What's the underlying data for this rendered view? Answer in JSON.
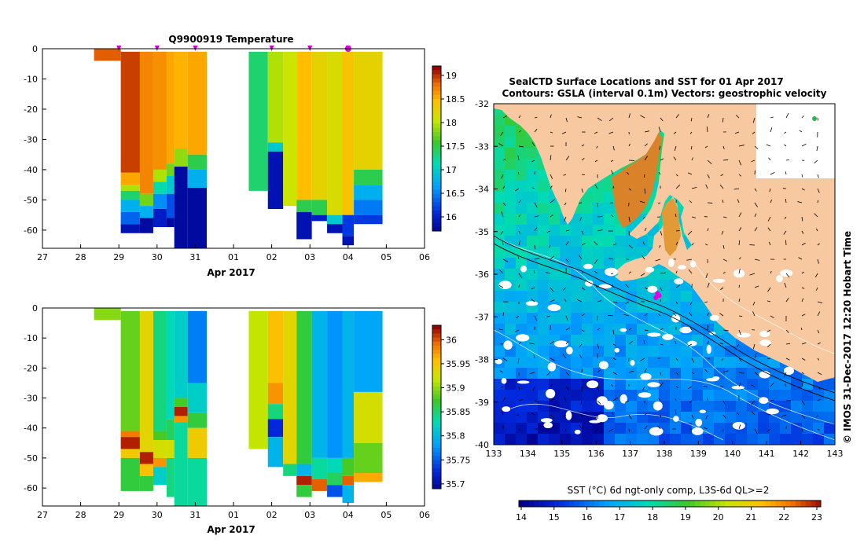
{
  "chart_data": [
    {
      "type": "heatmap",
      "title": "Q9900919  Temperature",
      "xlabel": "Apr 2017",
      "ylabel": "",
      "x_ticks": [
        "27",
        "28",
        "29",
        "30",
        "31",
        "01",
        "02",
        "03",
        "04",
        "05",
        "06"
      ],
      "xlim": [
        27,
        37
      ],
      "ylim": [
        -66,
        0
      ],
      "y_ticks": [
        "0",
        "-10",
        "-20",
        "-30",
        "-40",
        "-50",
        "-60"
      ],
      "colorbar": {
        "min": 15.7,
        "max": 19.2,
        "ticks": [
          "16",
          "16.5",
          "17",
          "17.5",
          "18",
          "18.5",
          "19"
        ]
      },
      "profile_markers": [
        29.0,
        30.0,
        31.0,
        33.0,
        34.0,
        35.0
      ],
      "profiles": [
        {
          "x0": 28.35,
          "x1": 29.05,
          "segments": [
            [
              0,
              -4,
              18.9
            ]
          ]
        },
        {
          "x0": 29.05,
          "x1": 29.55,
          "segments": [
            [
              -1,
              -41,
              19.0
            ],
            [
              -41,
              -45,
              18.6
            ],
            [
              -45,
              -47,
              18.0
            ],
            [
              -47,
              -50,
              17.4
            ],
            [
              -50,
              -54,
              16.8
            ],
            [
              -54,
              -58,
              16.4
            ],
            [
              -58,
              -61,
              15.9
            ]
          ]
        },
        {
          "x0": 29.55,
          "x1": 29.9,
          "segments": [
            [
              -1,
              -48,
              18.75
            ],
            [
              -48,
              -52,
              17.8
            ],
            [
              -52,
              -56,
              16.8
            ],
            [
              -56,
              -61,
              15.8
            ]
          ]
        },
        {
          "x0": 29.9,
          "x1": 30.25,
          "segments": [
            [
              -1,
              -40,
              18.7
            ],
            [
              -40,
              -44,
              18.0
            ],
            [
              -44,
              -48,
              17.2
            ],
            [
              -48,
              -53,
              16.6
            ],
            [
              -53,
              -59,
              16.0
            ]
          ]
        },
        {
          "x0": 30.25,
          "x1": 30.45,
          "segments": [
            [
              -1,
              -38,
              18.6
            ],
            [
              -38,
              -42,
              17.8
            ],
            [
              -42,
              -48,
              17.0
            ],
            [
              -48,
              -56,
              16.3
            ],
            [
              -56,
              -59,
              15.8
            ]
          ]
        },
        {
          "x0": 30.45,
          "x1": 30.8,
          "segments": [
            [
              -1,
              -33,
              18.55
            ],
            [
              -33,
              -39,
              17.9
            ],
            [
              -39,
              -66,
              15.8
            ]
          ]
        },
        {
          "x0": 30.8,
          "x1": 31.3,
          "segments": [
            [
              -1,
              -35,
              18.6
            ],
            [
              -35,
              -40,
              17.5
            ],
            [
              -40,
              -46,
              16.8
            ],
            [
              -46,
              -66,
              15.8
            ]
          ]
        },
        {
          "x0": 32.4,
          "x1": 32.9,
          "segments": [
            [
              -1,
              -47,
              17.4
            ]
          ]
        },
        {
          "x0": 32.9,
          "x1": 33.3,
          "segments": [
            [
              -1,
              -31,
              18.0
            ],
            [
              -31,
              -34,
              17.0
            ],
            [
              -34,
              -53,
              15.9
            ]
          ]
        },
        {
          "x0": 33.3,
          "x1": 33.65,
          "segments": [
            [
              -1,
              -52,
              18.1
            ]
          ]
        },
        {
          "x0": 33.65,
          "x1": 34.05,
          "segments": [
            [
              -1,
              -50,
              18.5
            ],
            [
              -50,
              -54,
              17.5
            ],
            [
              -54,
              -63,
              15.9
            ]
          ]
        },
        {
          "x0": 34.05,
          "x1": 34.45,
          "segments": [
            [
              -1,
              -50,
              18.3
            ],
            [
              -50,
              -55,
              17.5
            ],
            [
              -55,
              -57,
              16.0
            ]
          ]
        },
        {
          "x0": 34.45,
          "x1": 34.85,
          "segments": [
            [
              -1,
              -55,
              18.2
            ],
            [
              -55,
              -58,
              17.0
            ],
            [
              -58,
              -61,
              15.9
            ]
          ]
        },
        {
          "x0": 34.85,
          "x1": 35.15,
          "segments": [
            [
              -1,
              -55,
              18.45
            ],
            [
              -55,
              -62,
              16.2
            ],
            [
              -62,
              -65,
              15.9
            ]
          ]
        },
        {
          "x0": 35.15,
          "x1": 35.9,
          "segments": [
            [
              -1,
              -40,
              18.3
            ],
            [
              -40,
              -45,
              17.5
            ],
            [
              -45,
              -50,
              16.8
            ],
            [
              -50,
              -55,
              16.5
            ],
            [
              -55,
              -58,
              16.2
            ]
          ]
        }
      ]
    },
    {
      "type": "heatmap",
      "title": "",
      "xlabel": "Apr 2017",
      "ylabel": "",
      "x_ticks": [
        "27",
        "28",
        "29",
        "30",
        "31",
        "01",
        "02",
        "03",
        "04",
        "05",
        "06"
      ],
      "xlim": [
        27,
        37
      ],
      "ylim": [
        -66,
        0
      ],
      "y_ticks": [
        "0",
        "-10",
        "-20",
        "-30",
        "-40",
        "-50",
        "-60"
      ],
      "colorbar": {
        "min": 35.69,
        "max": 36.03,
        "ticks": [
          "35.7",
          "35.75",
          "35.8",
          "35.85",
          "35.9",
          "35.95",
          "36"
        ]
      },
      "profiles": [
        {
          "x0": 28.35,
          "x1": 29.05,
          "segments": [
            [
              0,
              -4,
              35.9
            ]
          ]
        },
        {
          "x0": 29.05,
          "x1": 29.55,
          "segments": [
            [
              -1,
              -41,
              35.89
            ],
            [
              -41,
              -43,
              35.99
            ],
            [
              -43,
              -47,
              36.02
            ],
            [
              -47,
              -50,
              35.95
            ],
            [
              -50,
              -61,
              35.87
            ]
          ]
        },
        {
          "x0": 29.55,
          "x1": 29.9,
          "segments": [
            [
              -1,
              -48,
              35.94
            ],
            [
              -48,
              -52,
              36.02
            ],
            [
              -52,
              -56,
              35.96
            ],
            [
              -56,
              -61,
              35.87
            ]
          ]
        },
        {
          "x0": 29.9,
          "x1": 30.25,
          "segments": [
            [
              -1,
              -41,
              35.85
            ],
            [
              -41,
              -44,
              35.88
            ],
            [
              -44,
              -50,
              35.93
            ],
            [
              -50,
              -53,
              35.98
            ],
            [
              -53,
              -59,
              35.82
            ]
          ]
        },
        {
          "x0": 30.25,
          "x1": 30.45,
          "segments": [
            [
              -1,
              -37,
              35.83
            ],
            [
              -37,
              -44,
              35.86
            ],
            [
              -44,
              -50,
              35.93
            ],
            [
              -50,
              -63,
              35.85
            ]
          ]
        },
        {
          "x0": 30.45,
          "x1": 30.8,
          "segments": [
            [
              -1,
              -30,
              35.82
            ],
            [
              -30,
              -33,
              35.88
            ],
            [
              -33,
              -36,
              36.02
            ],
            [
              -36,
              -38,
              35.98
            ],
            [
              -38,
              -66,
              35.84
            ]
          ]
        },
        {
          "x0": 30.8,
          "x1": 31.3,
          "segments": [
            [
              -1,
              -25,
              35.77
            ],
            [
              -25,
              -35,
              35.82
            ],
            [
              -35,
              -40,
              35.87
            ],
            [
              -40,
              -50,
              35.95
            ],
            [
              -50,
              -66,
              35.84
            ]
          ]
        },
        {
          "x0": 32.4,
          "x1": 32.9,
          "segments": [
            [
              -1,
              -47,
              35.92
            ]
          ]
        },
        {
          "x0": 32.9,
          "x1": 33.3,
          "segments": [
            [
              -1,
              -25,
              35.96
            ],
            [
              -25,
              -32,
              35.98
            ],
            [
              -32,
              -37,
              35.85
            ],
            [
              -37,
              -43,
              35.73
            ],
            [
              -43,
              -53,
              35.8
            ]
          ]
        },
        {
          "x0": 33.3,
          "x1": 33.65,
          "segments": [
            [
              -1,
              -52,
              35.94
            ],
            [
              -52,
              -56,
              35.85
            ]
          ]
        },
        {
          "x0": 33.65,
          "x1": 34.05,
          "segments": [
            [
              -1,
              -52,
              35.87
            ],
            [
              -52,
              -56,
              35.8
            ],
            [
              -56,
              -59,
              36.02
            ],
            [
              -59,
              -63,
              35.87
            ]
          ]
        },
        {
          "x0": 34.05,
          "x1": 34.45,
          "segments": [
            [
              -1,
              -50,
              35.8
            ],
            [
              -50,
              -57,
              35.84
            ],
            [
              -57,
              -61,
              36.0
            ]
          ]
        },
        {
          "x0": 34.45,
          "x1": 34.85,
          "segments": [
            [
              -1,
              -50,
              35.78
            ],
            [
              -50,
              -55,
              35.83
            ],
            [
              -55,
              -59,
              35.86
            ],
            [
              -59,
              -63,
              35.75
            ]
          ]
        },
        {
          "x0": 34.85,
          "x1": 35.15,
          "segments": [
            [
              -1,
              -50,
              35.8
            ],
            [
              -50,
              -56,
              35.88
            ],
            [
              -56,
              -59,
              36.0
            ],
            [
              -59,
              -65,
              35.8
            ]
          ]
        },
        {
          "x0": 35.15,
          "x1": 35.9,
          "segments": [
            [
              -1,
              -28,
              35.79
            ],
            [
              -28,
              -45,
              35.93
            ],
            [
              -45,
              -55,
              35.89
            ],
            [
              -55,
              -58,
              35.97
            ]
          ]
        }
      ]
    },
    {
      "type": "heatmap",
      "title": "SealCTD Surface Locations and SST for 01 Apr 2017",
      "subtitle": "Contours: GSLA (interval 0.1m) Vectors: geostrophic velocity",
      "x_ticks": [
        "133",
        "134",
        "135",
        "136",
        "137",
        "138",
        "139",
        "140",
        "141",
        "142",
        "143"
      ],
      "y_ticks": [
        "-32",
        "-33",
        "-34",
        "-35",
        "-36",
        "-37",
        "-38",
        "-39",
        "-40"
      ],
      "xlim": [
        133,
        143
      ],
      "ylim": [
        -40,
        -32
      ],
      "colorbar_label": "SST (°C) 6d ngt-only comp, L3S-6d QL>=2",
      "colorbar": {
        "min": 14,
        "max": 23,
        "ticks": [
          "14",
          "15",
          "16",
          "17",
          "18",
          "19",
          "20",
          "21",
          "22",
          "23"
        ]
      },
      "side_label": "© IMOS 31-Dec-2017 12:20 Hobart Time",
      "seal_locations": [
        [
          137.8,
          -36.45
        ],
        [
          137.75,
          -36.55
        ],
        [
          137.85,
          -36.5
        ]
      ],
      "land_color": "#f8c9a0"
    }
  ]
}
